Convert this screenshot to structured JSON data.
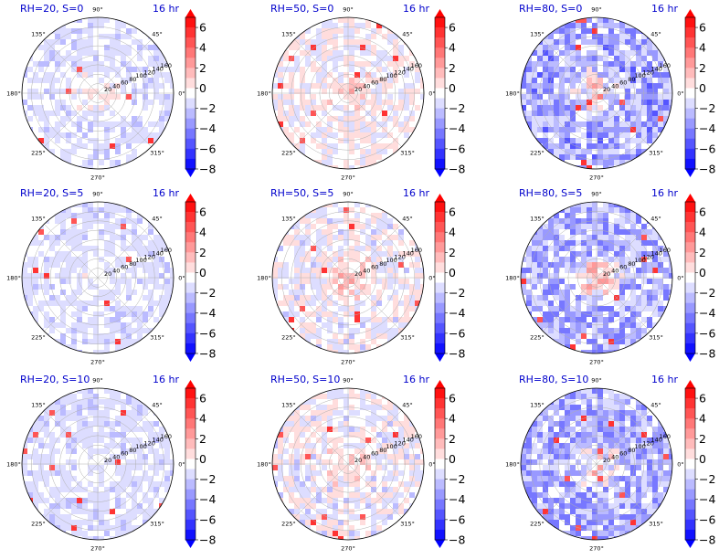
{
  "figure": {
    "colors": {
      "title": "#0000cc",
      "axis_text": "#000000"
    },
    "angle_labels": [
      "0°",
      "45°",
      "90°",
      "135°",
      "180°",
      "225°",
      "270°",
      "315°"
    ],
    "radial_labels": [
      "20",
      "40",
      "60",
      "80",
      "100",
      "120",
      "140",
      "160"
    ],
    "colorbar_ticks": [
      "6",
      "4",
      "2",
      "0",
      "−2",
      "−4",
      "−6",
      "−8"
    ],
    "colorbar_range": [
      -8,
      7
    ],
    "colorbar_levels": [
      -8,
      -7,
      -6,
      -5,
      -4,
      -3,
      -2,
      -1,
      0,
      1,
      2,
      3,
      4,
      5,
      6,
      7
    ],
    "colorbar_extend": "both",
    "colormap": "bwr"
  },
  "chart_data": [
    {
      "type": "heatmap",
      "projection": "polar",
      "title": "RH=20, S=0",
      "time_label": "16 hr",
      "center_value": 1.5,
      "field_mean": -1.2,
      "field_spread": 1.0
    },
    {
      "type": "heatmap",
      "projection": "polar",
      "title": "RH=50, S=0",
      "time_label": "16 hr",
      "center_value": 1.5,
      "field_mean": -0.5,
      "field_spread": 1.4
    },
    {
      "type": "heatmap",
      "projection": "polar",
      "title": "RH=80, S=0",
      "time_label": "16 hr",
      "center_value": 4.5,
      "field_mean": -2.8,
      "field_spread": 2.4
    },
    {
      "type": "heatmap",
      "projection": "polar",
      "title": "RH=20, S=5",
      "time_label": "16 hr",
      "center_value": 1.0,
      "field_mean": -1.3,
      "field_spread": 0.9
    },
    {
      "type": "heatmap",
      "projection": "polar",
      "title": "RH=50, S=5",
      "time_label": "16 hr",
      "center_value": 2.0,
      "field_mean": -0.6,
      "field_spread": 1.5
    },
    {
      "type": "heatmap",
      "projection": "polar",
      "title": "RH=80, S=5",
      "time_label": "16 hr",
      "center_value": 4.0,
      "field_mean": -2.6,
      "field_spread": 2.4
    },
    {
      "type": "heatmap",
      "projection": "polar",
      "title": "RH=20, S=10",
      "time_label": "16 hr",
      "center_value": 0.8,
      "field_mean": -1.4,
      "field_spread": 0.8
    },
    {
      "type": "heatmap",
      "projection": "polar",
      "title": "RH=50, S=10",
      "time_label": "16 hr",
      "center_value": 2.0,
      "field_mean": -0.7,
      "field_spread": 1.5
    },
    {
      "type": "heatmap",
      "projection": "polar",
      "title": "RH=80, S=10",
      "time_label": "16 hr",
      "center_value": 3.5,
      "field_mean": -2.6,
      "field_spread": 2.3
    }
  ]
}
